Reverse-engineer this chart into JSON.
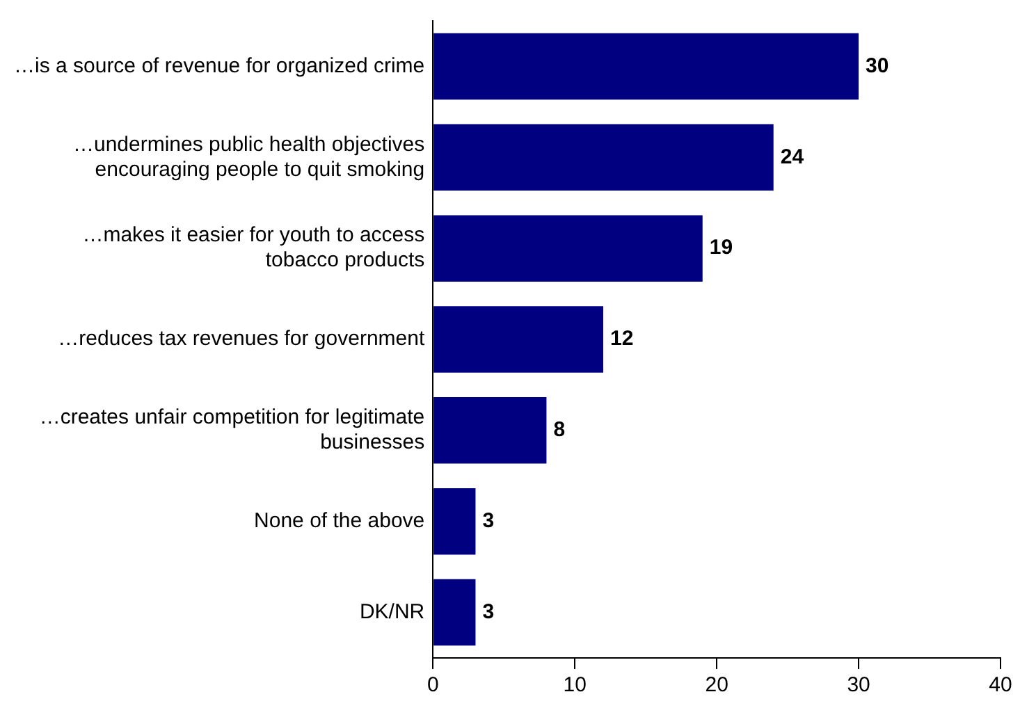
{
  "chart_data": {
    "type": "bar",
    "orientation": "horizontal",
    "categories": [
      "…is a source of revenue for organized crime",
      "…undermines public health objectives\nencouraging people to quit smoking",
      "…makes it easier for youth to access\ntobacco products",
      "…reduces tax revenues for government",
      "…creates unfair competition for legitimate\nbusinesses",
      "None of the above",
      "DK/NR"
    ],
    "values": [
      30,
      24,
      19,
      12,
      8,
      3,
      3
    ],
    "color": "#000080",
    "xlim": [
      0,
      40
    ],
    "xticks": [
      0,
      10,
      20,
      30,
      40
    ],
    "grid": false,
    "legend": false,
    "data_labels": true
  }
}
